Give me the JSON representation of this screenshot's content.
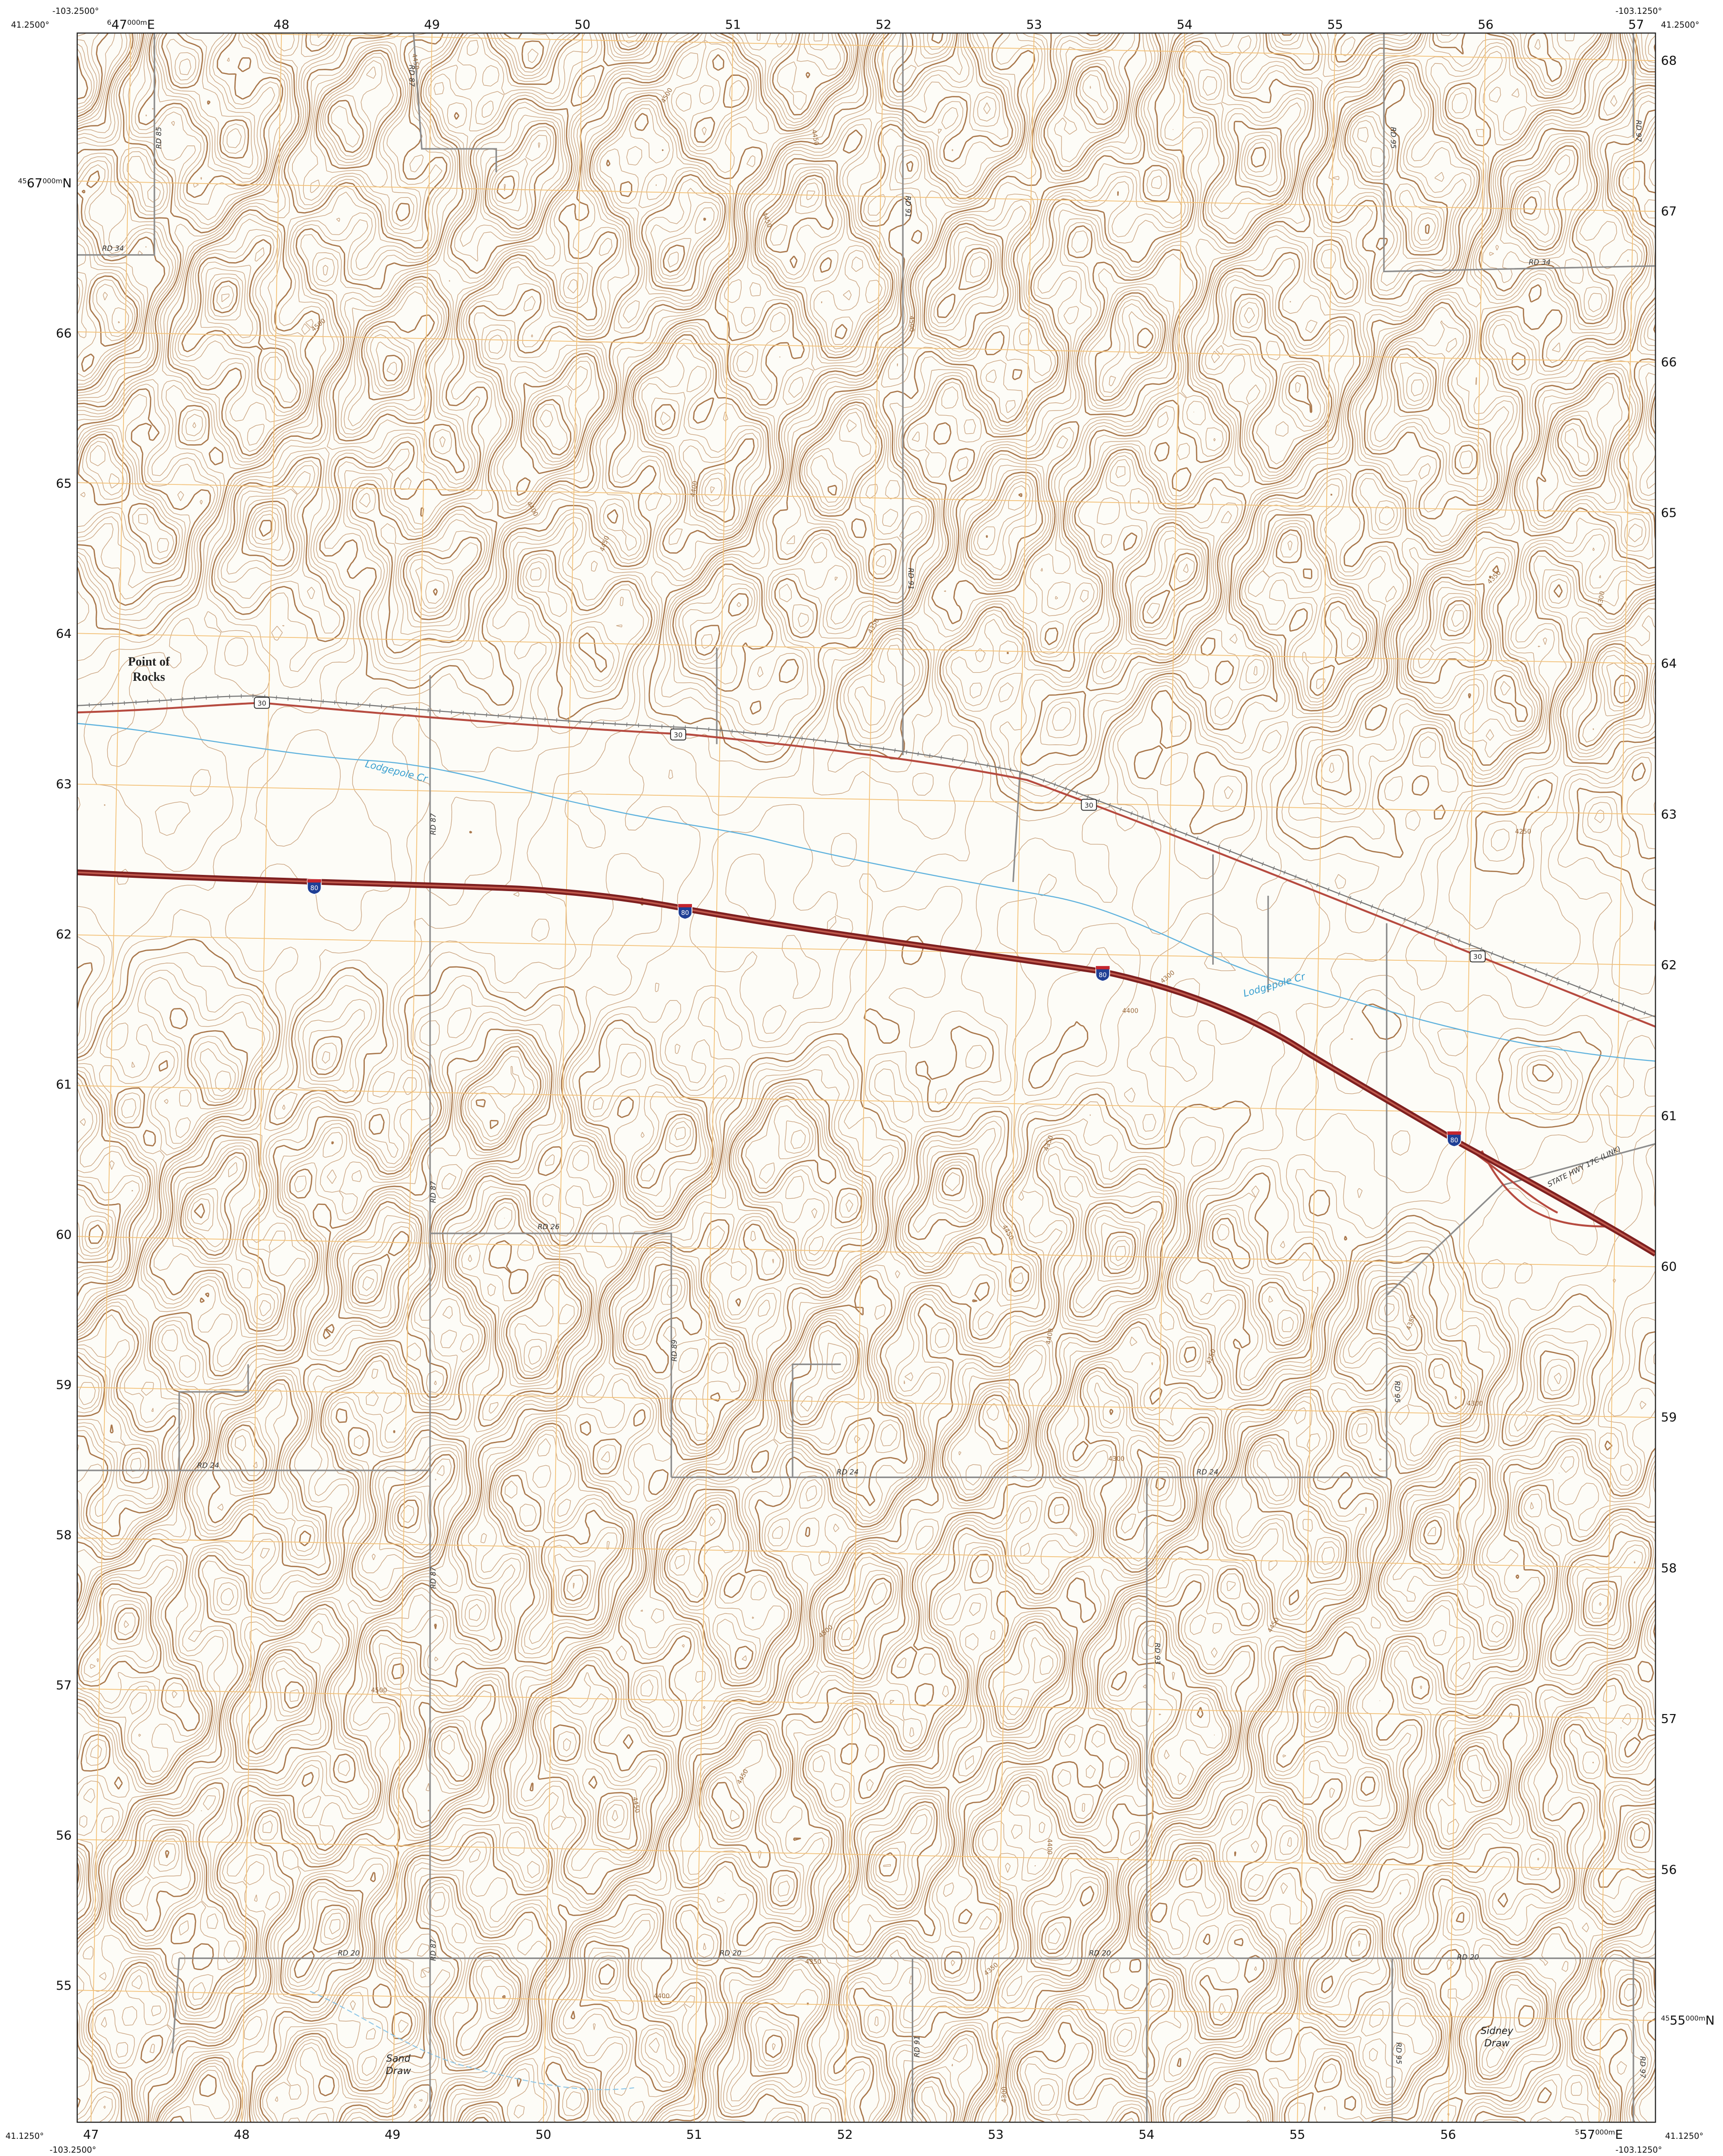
{
  "map": {
    "corners": {
      "top_left_lat": "41.2500°",
      "top_left_lon": "-103.2500°",
      "top_right_lon": "-103.1250°",
      "top_right_lat": "41.2500°",
      "bottom_left_lat": "41.1250°",
      "bottom_left_lon": "-103.2500°",
      "bottom_right_lon": "-103.1250°",
      "bottom_right_lat": "41.1250°"
    },
    "grid": {
      "top": [
        {
          "sup": "6",
          "main": "47",
          "sub": "000m",
          "tail": "E"
        },
        "48",
        "49",
        "50",
        "51",
        "52",
        "53",
        "54",
        "55",
        "56",
        "57"
      ],
      "bottom": [
        "47",
        "48",
        "49",
        "50",
        "51",
        "52",
        "53",
        "54",
        "55",
        "56",
        {
          "sup": "5",
          "main": "57",
          "sub": "000m",
          "tail": "E"
        }
      ],
      "left": [
        {
          "sup": "45",
          "main": "67",
          "sub": "000m",
          "tail": "N"
        },
        "66",
        "65",
        "64",
        "63",
        "62",
        "61",
        "60",
        "59",
        "58",
        "57",
        "56",
        "55"
      ],
      "right": [
        "68",
        "67",
        "66",
        "65",
        "64",
        "63",
        "62",
        "61",
        "60",
        "59",
        "58",
        "57",
        "56",
        {
          "sup": "45",
          "main": "55",
          "sub": "000m",
          "tail": "N"
        }
      ]
    },
    "places": {
      "point_of_rocks": [
        "Point of",
        "Rocks"
      ],
      "sand_draw": [
        "Sand",
        "Draw"
      ],
      "sidney_draw": [
        "Sidney",
        "Draw"
      ]
    },
    "streams": [
      "Lodgepole Cr",
      "Lodgepole Cr"
    ],
    "highway_label": "STATE HWY 17C (LINK)",
    "shields": {
      "interstate": "80",
      "us": "30"
    },
    "roads": [
      "RD 85",
      "RD 87",
      "RD 34",
      "RD 91",
      "RD 95",
      "RD 97",
      "RD 34",
      "RD 91",
      "RD 87",
      "RD 87",
      "RD 26",
      "RD 89",
      "RD 24",
      "RD 24",
      "RD 24",
      "RD 95",
      "RD 87",
      "RD 93",
      "RD 87",
      "RD 20",
      "RD 20",
      "RD 20",
      "RD 20",
      "RD 91",
      "RD 95",
      "RD 97"
    ],
    "contour_labels": [
      "4450",
      "4500",
      "4450",
      "4500",
      "4450",
      "4500",
      "4400",
      "4450",
      "4400",
      "4350",
      "4350",
      "4300",
      "4250",
      "4300",
      "4400",
      "4350",
      "4450",
      "4400",
      "4350",
      "4300",
      "4250",
      "4500",
      "4450",
      "4400",
      "4350",
      "4300",
      "4450",
      "4500",
      "4400",
      "4350",
      "4450",
      "4300"
    ]
  }
}
